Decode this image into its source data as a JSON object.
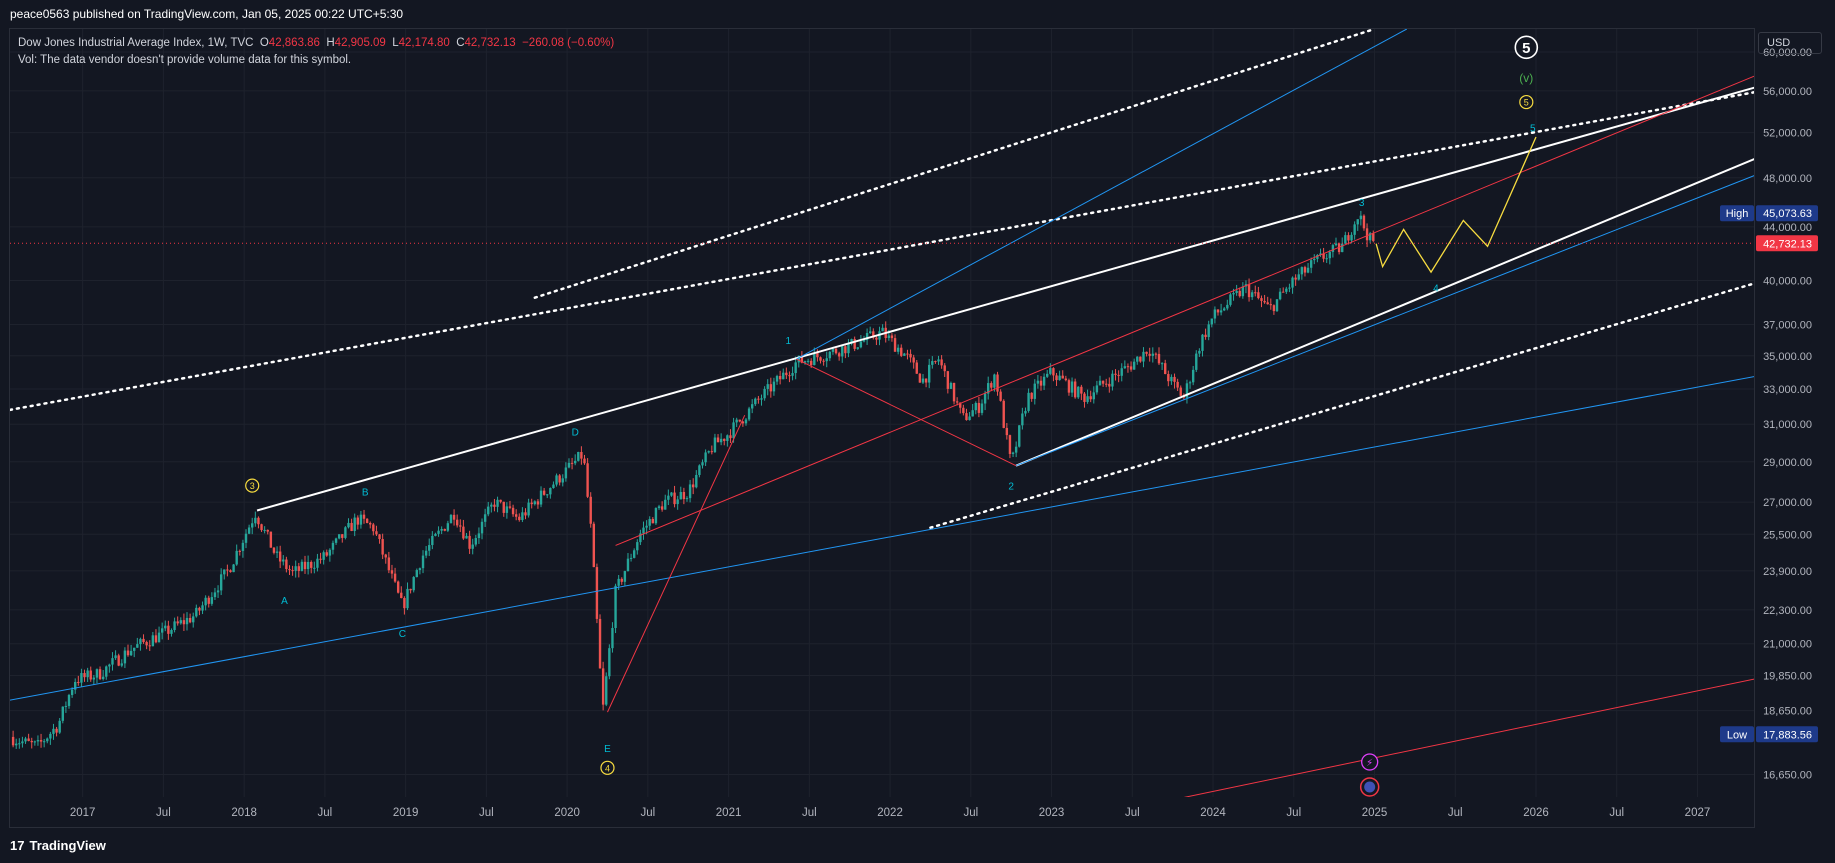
{
  "header": {
    "published": "peace0563 published on TradingView.com, Jan 05, 2025 00:22 UTC+5:30"
  },
  "legend": {
    "symbol": "Dow Jones Industrial Average Index, 1W, TVC",
    "o_label": "O",
    "o": "42,863.86",
    "h_label": "H",
    "h": "42,905.09",
    "l_label": "L",
    "l": "42,174.80",
    "c_label": "C",
    "c": "42,732.13",
    "change": "−260.08 (−0.60%)",
    "vol": "Vol: The data vendor doesn't provide volume data for this symbol."
  },
  "currency": "USD",
  "footer": {
    "brand": "TradingView",
    "logo": "17"
  },
  "colors": {
    "up": "#26a69a",
    "down": "#ef5350",
    "bg": "#131722",
    "blue": "#2962ff",
    "cyan": "#00bcd4",
    "yellow": "#f7dc40"
  },
  "chart_data": {
    "type": "candlestick",
    "title": "Dow Jones Industrial Average Index, 1W, TVC",
    "y_scale": "log",
    "ylim": [
      16000,
      62500
    ],
    "xlim": [
      2016.55,
      2027.35
    ],
    "y_ticks": [
      {
        "v": 60000,
        "label": "60,000.00"
      },
      {
        "v": 56000,
        "label": "56,000.00"
      },
      {
        "v": 52000,
        "label": "52,000.00"
      },
      {
        "v": 48000,
        "label": "48,000.00"
      },
      {
        "v": 44000,
        "label": "44,000.00"
      },
      {
        "v": 40000,
        "label": "40,000.00"
      },
      {
        "v": 37000,
        "label": "37,000.00"
      },
      {
        "v": 35000,
        "label": "35,000.00"
      },
      {
        "v": 33000,
        "label": "33,000.00"
      },
      {
        "v": 31000,
        "label": "31,000.00"
      },
      {
        "v": 29000,
        "label": "29,000.00"
      },
      {
        "v": 27000,
        "label": "27,000.00"
      },
      {
        "v": 25500,
        "label": "25,500.00"
      },
      {
        "v": 23900,
        "label": "23,900.00"
      },
      {
        "v": 22300,
        "label": "22,300.00"
      },
      {
        "v": 21000,
        "label": "21,000.00"
      },
      {
        "v": 19850,
        "label": "19,850.00"
      },
      {
        "v": 18650,
        "label": "18,650.00"
      },
      {
        "v": 16650,
        "label": "16,650.00"
      }
    ],
    "x_ticks": [
      {
        "v": 2017.0,
        "label": "2017"
      },
      {
        "v": 2017.5,
        "label": "Jul"
      },
      {
        "v": 2018.0,
        "label": "2018"
      },
      {
        "v": 2018.5,
        "label": "Jul"
      },
      {
        "v": 2019.0,
        "label": "2019"
      },
      {
        "v": 2019.5,
        "label": "Jul"
      },
      {
        "v": 2020.0,
        "label": "2020"
      },
      {
        "v": 2020.5,
        "label": "Jul"
      },
      {
        "v": 2021.0,
        "label": "2021"
      },
      {
        "v": 2021.5,
        "label": "Jul"
      },
      {
        "v": 2022.0,
        "label": "2022"
      },
      {
        "v": 2022.5,
        "label": "Jul"
      },
      {
        "v": 2023.0,
        "label": "2023"
      },
      {
        "v": 2023.5,
        "label": "Jul"
      },
      {
        "v": 2024.0,
        "label": "2024"
      },
      {
        "v": 2024.5,
        "label": "Jul"
      },
      {
        "v": 2025.0,
        "label": "2025"
      },
      {
        "v": 2025.5,
        "label": "Jul"
      },
      {
        "v": 2026.0,
        "label": "2026"
      },
      {
        "v": 2026.5,
        "label": "Jul"
      },
      {
        "v": 2027.0,
        "label": "2027"
      }
    ],
    "price_path": [
      [
        2016.55,
        17800
      ],
      [
        2016.62,
        17650
      ],
      [
        2016.72,
        17500
      ],
      [
        2016.85,
        18200
      ],
      [
        2016.95,
        19700
      ],
      [
        2017.1,
        19900
      ],
      [
        2017.3,
        20800
      ],
      [
        2017.5,
        21400
      ],
      [
        2017.7,
        22100
      ],
      [
        2017.9,
        23900
      ],
      [
        2018.07,
        26500
      ],
      [
        2018.2,
        24500
      ],
      [
        2018.3,
        23800
      ],
      [
        2018.5,
        24500
      ],
      [
        2018.7,
        26200
      ],
      [
        2018.8,
        25800
      ],
      [
        2018.98,
        22400
      ],
      [
        2019.1,
        24500
      ],
      [
        2019.3,
        26500
      ],
      [
        2019.4,
        25000
      ],
      [
        2019.55,
        27000
      ],
      [
        2019.7,
        26200
      ],
      [
        2019.9,
        27800
      ],
      [
        2020.1,
        29400
      ],
      [
        2020.15,
        25500
      ],
      [
        2020.22,
        18600
      ],
      [
        2020.3,
        23000
      ],
      [
        2020.45,
        25500
      ],
      [
        2020.6,
        27000
      ],
      [
        2020.75,
        27500
      ],
      [
        2020.9,
        29800
      ],
      [
        2021.0,
        30500
      ],
      [
        2021.2,
        32500
      ],
      [
        2021.42,
        34600
      ],
      [
        2021.6,
        35100
      ],
      [
        2021.8,
        35800
      ],
      [
        2021.95,
        36500
      ],
      [
        2022.1,
        35000
      ],
      [
        2022.2,
        33500
      ],
      [
        2022.3,
        34800
      ],
      [
        2022.45,
        31300
      ],
      [
        2022.55,
        32000
      ],
      [
        2022.65,
        33900
      ],
      [
        2022.75,
        28800
      ],
      [
        2022.85,
        32500
      ],
      [
        2023.0,
        34000
      ],
      [
        2023.2,
        32500
      ],
      [
        2023.35,
        33500
      ],
      [
        2023.5,
        34500
      ],
      [
        2023.6,
        35500
      ],
      [
        2023.75,
        33300
      ],
      [
        2023.82,
        32500
      ],
      [
        2023.92,
        35800
      ],
      [
        2024.0,
        37500
      ],
      [
        2024.2,
        39500
      ],
      [
        2024.35,
        38000
      ],
      [
        2024.5,
        40000
      ],
      [
        2024.65,
        41500
      ],
      [
        2024.8,
        42500
      ],
      [
        2024.9,
        45000
      ],
      [
        2024.97,
        43000
      ],
      [
        2025.01,
        42700
      ]
    ],
    "projection": [
      [
        2025.01,
        42700
      ],
      [
        2025.05,
        41000
      ],
      [
        2025.18,
        43800
      ],
      [
        2025.35,
        40600
      ],
      [
        2025.55,
        44500
      ],
      [
        2025.7,
        42500
      ],
      [
        2026.0,
        51600
      ]
    ],
    "trendlines": [
      {
        "color": "#ffffff",
        "dash": false,
        "w": 2,
        "p": [
          [
            2018.08,
            26600
          ],
          [
            2027.5,
            57000
          ]
        ]
      },
      {
        "color": "#ffffff",
        "dash": false,
        "w": 2,
        "p": [
          [
            2022.78,
            28800
          ],
          [
            2027.5,
            50500
          ]
        ]
      },
      {
        "color": "#ffffff",
        "dash": true,
        "w": 2.5,
        "p": [
          [
            2016.55,
            31800
          ],
          [
            2027.5,
            56300
          ]
        ]
      },
      {
        "color": "#ffffff",
        "dash": true,
        "w": 2.5,
        "p": [
          [
            2019.8,
            38800
          ],
          [
            2025.0,
            62500
          ]
        ]
      },
      {
        "color": "#ffffff",
        "dash": true,
        "w": 2.5,
        "p": [
          [
            2022.25,
            25800
          ],
          [
            2027.5,
            40300
          ]
        ]
      },
      {
        "color": "#2196f3",
        "dash": false,
        "w": 1,
        "p": [
          [
            2016.55,
            19000
          ],
          [
            2027.5,
            34000
          ]
        ]
      },
      {
        "color": "#2196f3",
        "dash": false,
        "w": 1,
        "p": [
          [
            2021.42,
            34800
          ],
          [
            2025.2,
            62500
          ]
        ]
      },
      {
        "color": "#2196f3",
        "dash": false,
        "w": 1,
        "p": [
          [
            2022.78,
            28800
          ],
          [
            2027.5,
            49000
          ]
        ]
      },
      {
        "color": "#f23645",
        "dash": false,
        "w": 1,
        "p": [
          [
            2020.3,
            25000
          ],
          [
            2027.5,
            58500
          ]
        ]
      },
      {
        "color": "#f23645",
        "dash": false,
        "w": 1,
        "p": [
          [
            2020.25,
            18600
          ],
          [
            2021.1,
            31500
          ]
        ]
      },
      {
        "color": "#f23645",
        "dash": false,
        "w": 1,
        "p": [
          [
            2021.42,
            34800
          ],
          [
            2022.78,
            28800
          ]
        ]
      },
      {
        "color": "#f23645",
        "dash": false,
        "w": 1,
        "p": [
          [
            2023.3,
            15500
          ],
          [
            2027.5,
            19900
          ]
        ]
      }
    ],
    "wave_labels": [
      {
        "t": "A",
        "x": 2018.25,
        "y": 22700,
        "c": "#00bcd4",
        "circle": false
      },
      {
        "t": "B",
        "x": 2018.75,
        "y": 27500,
        "c": "#00bcd4",
        "circle": false
      },
      {
        "t": "C",
        "x": 2018.98,
        "y": 21400,
        "c": "#00bcd4",
        "circle": false
      },
      {
        "t": "D",
        "x": 2020.05,
        "y": 30600,
        "c": "#00bcd4",
        "circle": false
      },
      {
        "t": "E",
        "x": 2020.25,
        "y": 17450,
        "c": "#00bcd4",
        "circle": false
      },
      {
        "t": "1",
        "x": 2021.37,
        "y": 36000,
        "c": "#00bcd4",
        "circle": false
      },
      {
        "t": "2",
        "x": 2022.75,
        "y": 27800,
        "c": "#00bcd4",
        "circle": false
      },
      {
        "t": "3",
        "x": 2024.92,
        "y": 46000,
        "c": "#00bcd4",
        "circle": false
      },
      {
        "t": "4",
        "x": 2025.38,
        "y": 39500,
        "c": "#00bcd4",
        "circle": false
      },
      {
        "t": "5",
        "x": 2025.98,
        "y": 52500,
        "c": "#00bcd4",
        "circle": false
      },
      {
        "t": "3",
        "x": 2018.05,
        "y": 27800,
        "c": "#f7dc40",
        "circle": true
      },
      {
        "t": "4",
        "x": 2020.25,
        "y": 16850,
        "c": "#f7dc40",
        "circle": true
      },
      {
        "t": "5",
        "x": 2025.94,
        "y": 54900,
        "c": "#f7dc40",
        "circle": true
      },
      {
        "t": "(v)",
        "x": 2025.94,
        "y": 57300,
        "c": "#4caf50",
        "circle": false
      },
      {
        "t": "5",
        "x": 2025.94,
        "y": 60500,
        "c": "#ffffff",
        "circle": true
      }
    ],
    "last_price": {
      "value": 42732.13,
      "label": "42,732.13"
    },
    "high": {
      "label": "High",
      "value": 45073.63,
      "value_label": "45,073.63"
    },
    "low": {
      "label": "Low",
      "value": 17883.56,
      "value_label": "17,883.56"
    }
  }
}
